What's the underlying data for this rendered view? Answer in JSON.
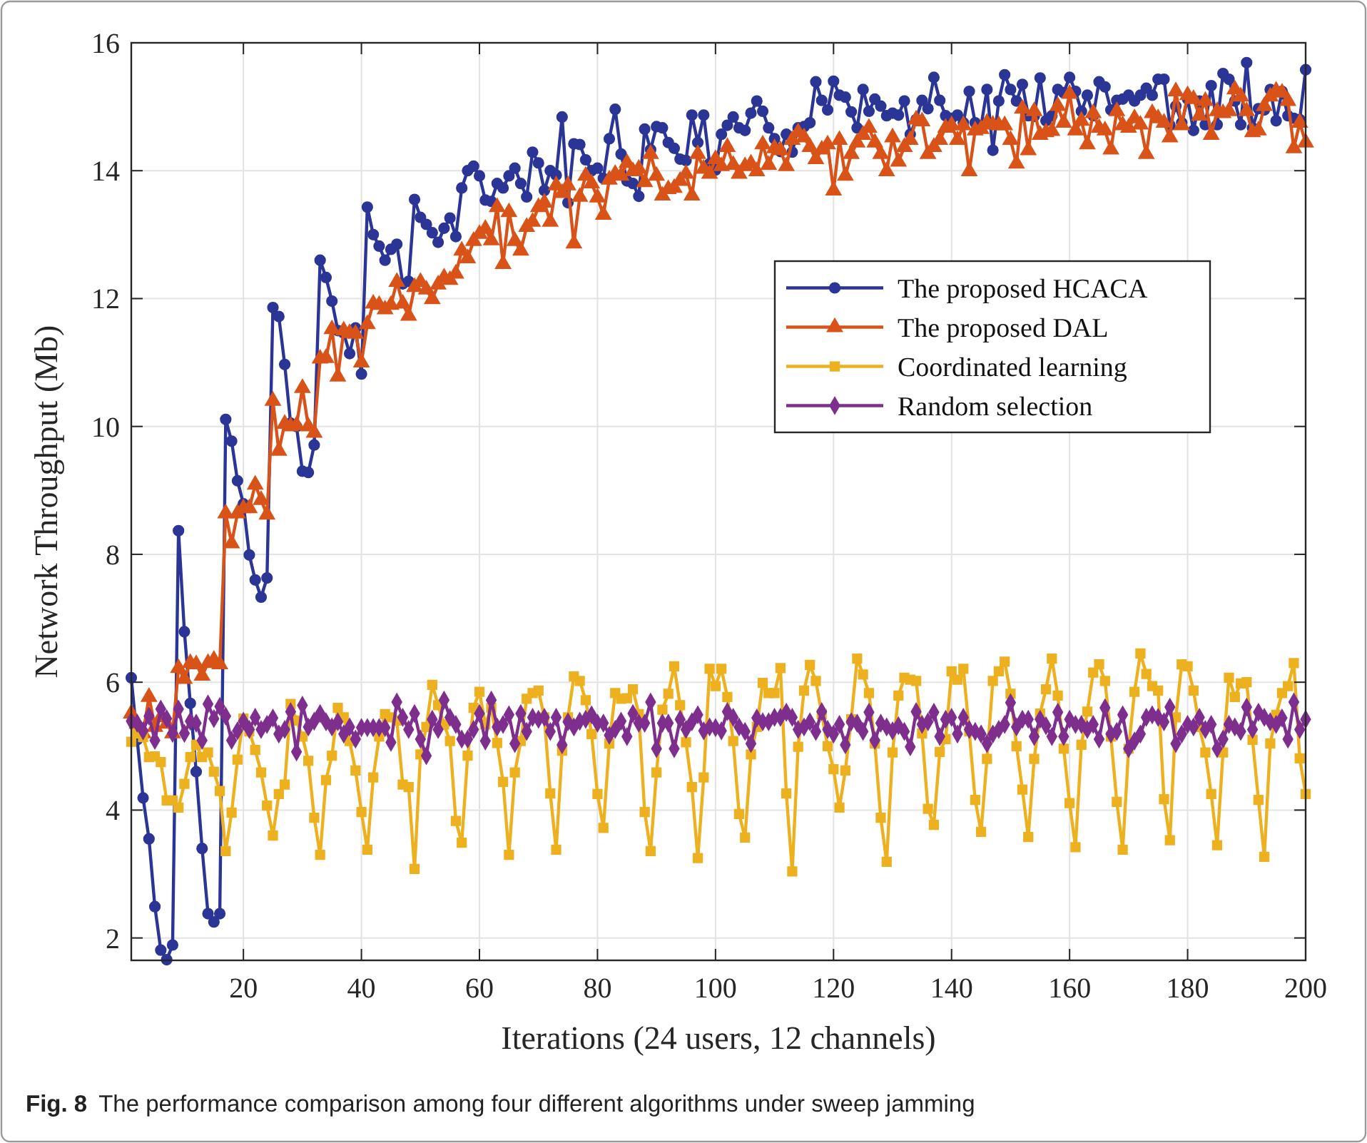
{
  "chart_data": {
    "type": "line",
    "xlabel": "Iterations (24 users, 12 channels)",
    "ylabel": "Network Throughput (Mb)",
    "annotations": [
      "Fig. 8 The performance comparison among four different algorithms under sweep jamming"
    ],
    "xlim": [
      1,
      200
    ],
    "ylim": [
      1.65,
      16
    ],
    "xticks": [
      20,
      40,
      60,
      80,
      100,
      120,
      140,
      160,
      180,
      200
    ],
    "yticks": [
      2,
      4,
      6,
      8,
      10,
      12,
      14,
      16
    ],
    "grid": true,
    "legend": "right",
    "line_style": "solid",
    "x": [
      1,
      2,
      3,
      4,
      5,
      6,
      7,
      8,
      9,
      10,
      11,
      12,
      13,
      14,
      15,
      16,
      17,
      18,
      19,
      20,
      21,
      22,
      23,
      24,
      25,
      26,
      27,
      28,
      29,
      30,
      31,
      32,
      33,
      34,
      35,
      36,
      37,
      38,
      39,
      40,
      41,
      42,
      43,
      44,
      45,
      46,
      47,
      48,
      49,
      50,
      51,
      52,
      53,
      54,
      55,
      56,
      57,
      58,
      59,
      60,
      61,
      62,
      63,
      64,
      65,
      66,
      67,
      68,
      69,
      70,
      71,
      72,
      73,
      74,
      75,
      76,
      77,
      78,
      79,
      80,
      81,
      82,
      83,
      84,
      85,
      86,
      87,
      88,
      89,
      90,
      91,
      92,
      93,
      94,
      95,
      96,
      97,
      98,
      99,
      100,
      101,
      102,
      103,
      104,
      105,
      106,
      107,
      108,
      109,
      110,
      111,
      112,
      113,
      114,
      115,
      116,
      117,
      118,
      119,
      120,
      121,
      122,
      123,
      124,
      125,
      126,
      127,
      128,
      129,
      130,
      131,
      132,
      133,
      134,
      135,
      136,
      137,
      138,
      139,
      140,
      141,
      142,
      143,
      144,
      145,
      146,
      147,
      148,
      149,
      150,
      151,
      152,
      153,
      154,
      155,
      156,
      157,
      158,
      159,
      160,
      161,
      162,
      163,
      164,
      165,
      166,
      167,
      168,
      169,
      170,
      171,
      172,
      173,
      174,
      175,
      176,
      177,
      178,
      179,
      180,
      181,
      182,
      183,
      184,
      185,
      186,
      187,
      188,
      189,
      190,
      191,
      192,
      193,
      194,
      195,
      196,
      197,
      198,
      199,
      200
    ],
    "series": [
      {
        "name": "The proposed HCACA",
        "color": "#2b3595",
        "marker": "circle",
        "values": [
          6.07,
          5.1,
          4.19,
          3.55,
          2.49,
          1.81,
          1.66,
          1.89,
          8.37,
          6.79,
          5.67,
          4.6,
          3.4,
          2.38,
          2.25,
          2.38,
          10.11,
          9.77,
          9.15,
          8.79,
          7.99,
          7.6,
          7.33,
          7.63,
          11.86,
          11.72,
          10.97,
          10.05,
          10.0,
          9.3,
          9.28,
          9.71,
          12.6,
          12.33,
          11.96,
          11.5,
          11.46,
          11.14,
          11.54,
          10.82,
          13.43,
          13.0,
          12.82,
          12.6,
          12.77,
          12.85,
          12.23,
          12.27,
          13.55,
          13.27,
          13.16,
          13.03,
          12.88,
          13.1,
          13.26,
          12.97,
          13.73,
          14.0,
          14.07,
          13.92,
          13.54,
          13.52,
          13.8,
          13.73,
          13.92,
          14.04,
          13.8,
          13.59,
          14.29,
          14.12,
          13.69,
          14.0,
          13.93,
          14.84,
          13.5,
          14.42,
          14.41,
          14.17,
          14.0,
          14.04,
          13.88,
          14.5,
          14.96,
          14.26,
          13.84,
          13.8,
          13.6,
          14.65,
          14.33,
          14.69,
          14.67,
          14.44,
          14.35,
          14.18,
          14.16,
          14.87,
          14.44,
          14.87,
          14.11,
          14.01,
          14.57,
          14.71,
          14.84,
          14.67,
          14.63,
          14.9,
          15.09,
          14.93,
          14.67,
          14.5,
          14.3,
          14.57,
          14.29,
          14.67,
          14.69,
          14.75,
          15.39,
          15.1,
          14.95,
          15.4,
          15.18,
          15.15,
          14.92,
          14.67,
          15.27,
          14.93,
          15.12,
          15.01,
          14.86,
          14.9,
          14.87,
          15.09,
          14.57,
          14.8,
          15.1,
          14.97,
          15.46,
          15.1,
          14.86,
          14.82,
          14.87,
          14.75,
          15.24,
          14.75,
          14.7,
          15.27,
          14.32,
          15.09,
          15.5,
          15.27,
          15.09,
          15.35,
          14.86,
          14.85,
          15.45,
          14.78,
          14.86,
          15.27,
          15.22,
          15.46,
          15.24,
          14.93,
          15.18,
          14.86,
          15.39,
          15.31,
          14.95,
          15.1,
          15.12,
          15.18,
          15.09,
          15.18,
          15.29,
          15.18,
          15.43,
          15.43,
          14.71,
          15.01,
          14.75,
          15.12,
          14.63,
          15.09,
          14.72,
          15.33,
          14.72,
          15.52,
          15.43,
          15.09,
          14.72,
          15.69,
          14.67,
          14.97,
          14.95,
          15.27,
          14.78,
          15.24,
          14.86,
          14.82,
          14.8,
          15.58
        ]
      },
      {
        "name": "The proposed DAL",
        "color": "#d95319",
        "marker": "triangle",
        "values": [
          5.51,
          5.35,
          5.2,
          5.77,
          5.3,
          5.45,
          5.35,
          5.2,
          6.22,
          6.05,
          6.3,
          6.28,
          6.1,
          6.3,
          6.35,
          6.28,
          8.64,
          8.17,
          8.64,
          8.72,
          8.72,
          9.09,
          8.85,
          8.62,
          10.4,
          9.62,
          10.04,
          10.0,
          10.02,
          10.6,
          10.0,
          9.9,
          11.06,
          11.07,
          11.52,
          10.78,
          11.5,
          11.46,
          11.45,
          11.0,
          11.6,
          11.92,
          11.9,
          11.83,
          11.9,
          12.26,
          11.92,
          11.73,
          12.18,
          12.26,
          12.14,
          11.99,
          12.22,
          12.33,
          12.29,
          12.39,
          12.75,
          12.63,
          12.9,
          13.01,
          13.09,
          12.91,
          13.43,
          12.54,
          13.35,
          12.9,
          12.75,
          13.12,
          13.2,
          13.43,
          13.5,
          13.2,
          13.77,
          13.65,
          13.77,
          12.86,
          13.59,
          13.92,
          13.8,
          13.58,
          13.31,
          13.86,
          13.95,
          13.92,
          14.12,
          13.99,
          14.03,
          13.82,
          14.26,
          13.92,
          13.61,
          13.71,
          13.73,
          13.84,
          13.95,
          13.61,
          14.26,
          14.03,
          13.95,
          14.18,
          14.07,
          14.37,
          14.09,
          13.95,
          14.07,
          14.11,
          13.99,
          14.41,
          14.09,
          14.35,
          14.32,
          14.07,
          14.48,
          14.6,
          14.52,
          14.37,
          14.18,
          14.33,
          14.41,
          13.69,
          14.48,
          13.92,
          14.26,
          14.44,
          14.56,
          14.67,
          14.44,
          14.26,
          13.99,
          14.52,
          14.14,
          14.37,
          14.48,
          14.8,
          14.77,
          14.26,
          14.37,
          14.48,
          14.67,
          14.71,
          14.48,
          14.71,
          13.99,
          14.63,
          14.65,
          14.75,
          14.72,
          14.71,
          14.71,
          14.48,
          14.11,
          14.97,
          14.32,
          14.93,
          14.56,
          14.6,
          14.62,
          15.01,
          14.75,
          15.2,
          14.63,
          14.78,
          14.41,
          14.9,
          14.67,
          14.63,
          14.33,
          14.93,
          14.71,
          14.67,
          14.82,
          14.72,
          14.26,
          14.9,
          14.82,
          14.75,
          14.52,
          15.24,
          14.71,
          15.18,
          15.12,
          14.86,
          15.09,
          14.56,
          14.93,
          14.9,
          14.93,
          15.27,
          15.16,
          14.93,
          14.6,
          14.63,
          15.01,
          15.16,
          15.25,
          15.22,
          15.09,
          14.35,
          14.75,
          14.44
        ]
      },
      {
        "name": "Coordinated learning",
        "color": "#edb120",
        "marker": "square",
        "values": [
          5.07,
          5.2,
          5.14,
          4.83,
          4.84,
          4.75,
          4.15,
          4.15,
          4.04,
          4.41,
          4.83,
          5.02,
          4.83,
          4.9,
          4.6,
          4.3,
          3.36,
          3.96,
          4.79,
          5.43,
          5.23,
          4.94,
          4.59,
          4.07,
          3.6,
          4.25,
          4.4,
          5.66,
          5.4,
          5.15,
          4.77,
          3.88,
          3.3,
          4.47,
          4.85,
          5.6,
          5.45,
          5.08,
          4.62,
          3.97,
          3.38,
          4.51,
          5.15,
          5.5,
          5.45,
          5.4,
          4.4,
          4.36,
          3.08,
          4.87,
          5.3,
          5.96,
          5.64,
          5.34,
          5.08,
          3.83,
          3.49,
          4.85,
          5.6,
          5.85,
          5.34,
          5.6,
          5.05,
          4.44,
          3.3,
          4.59,
          5.08,
          5.74,
          5.83,
          5.87,
          5.45,
          4.26,
          3.38,
          4.93,
          5.45,
          6.09,
          6.02,
          5.72,
          5.19,
          4.25,
          3.72,
          5.04,
          5.83,
          5.74,
          5.75,
          5.89,
          5.5,
          3.97,
          3.36,
          4.59,
          5.57,
          5.82,
          6.25,
          5.64,
          5.06,
          4.36,
          3.25,
          4.51,
          6.21,
          5.94,
          6.21,
          5.77,
          5.08,
          3.94,
          3.57,
          4.87,
          5.3,
          5.99,
          5.83,
          5.83,
          6.22,
          4.26,
          3.04,
          4.99,
          5.87,
          6.27,
          6.02,
          5.5,
          5.0,
          4.64,
          4.04,
          4.62,
          5.42,
          6.37,
          6.12,
          5.83,
          5.04,
          3.88,
          3.19,
          4.9,
          5.79,
          6.07,
          6.04,
          6.02,
          5.2,
          4.02,
          3.77,
          4.91,
          5.11,
          6.17,
          6.04,
          6.21,
          5.23,
          4.16,
          3.66,
          4.8,
          6.02,
          6.17,
          6.32,
          5.82,
          5.0,
          4.32,
          3.58,
          4.8,
          5.51,
          5.89,
          6.37,
          5.79,
          4.96,
          4.11,
          3.42,
          5.02,
          5.54,
          6.15,
          6.28,
          6.02,
          5.15,
          4.13,
          3.38,
          4.96,
          5.85,
          6.45,
          6.13,
          5.94,
          5.87,
          4.17,
          3.53,
          5.45,
          6.28,
          6.25,
          5.87,
          5.3,
          4.9,
          4.25,
          3.45,
          4.9,
          6.07,
          5.77,
          5.98,
          6.0,
          5.1,
          4.16,
          3.27,
          5.04,
          5.49,
          5.83,
          5.94,
          6.3,
          4.81,
          4.25
        ]
      },
      {
        "name": "Random selection",
        "color": "#7e2f8e",
        "marker": "diamond",
        "values": [
          5.39,
          5.36,
          5.24,
          5.47,
          5.09,
          5.58,
          5.43,
          5.2,
          5.58,
          5.2,
          5.39,
          5.36,
          5.09,
          5.66,
          5.43,
          5.62,
          5.47,
          5.09,
          5.24,
          5.39,
          5.26,
          5.45,
          5.26,
          5.34,
          5.44,
          5.19,
          5.26,
          5.54,
          4.91,
          5.64,
          5.3,
          5.39,
          5.51,
          5.38,
          5.3,
          5.38,
          5.19,
          5.3,
          5.11,
          5.29,
          5.29,
          5.29,
          5.29,
          5.29,
          5.06,
          5.69,
          5.45,
          5.26,
          5.51,
          5.11,
          4.85,
          5.42,
          5.26,
          5.72,
          5.45,
          5.34,
          5.11,
          5.11,
          5.26,
          5.51,
          5.08,
          5.72,
          5.3,
          5.34,
          5.49,
          5.04,
          5.51,
          5.23,
          5.45,
          5.42,
          5.45,
          5.23,
          5.45,
          5.02,
          5.38,
          5.3,
          5.39,
          5.42,
          5.49,
          5.36,
          5.36,
          5.17,
          5.26,
          5.39,
          5.15,
          5.51,
          5.36,
          5.36,
          5.69,
          4.96,
          5.36,
          5.36,
          4.96,
          5.42,
          5.26,
          5.38,
          5.49,
          5.24,
          5.3,
          5.29,
          5.24,
          5.54,
          5.45,
          5.3,
          5.23,
          5.04,
          5.44,
          5.38,
          5.38,
          5.45,
          5.45,
          5.53,
          5.45,
          5.26,
          5.3,
          5.38,
          5.23,
          5.54,
          5.26,
          5.19,
          5.34,
          5.02,
          5.38,
          5.36,
          5.23,
          5.53,
          5.09,
          5.36,
          5.3,
          5.24,
          5.32,
          5.23,
          4.99,
          5.54,
          5.34,
          5.38,
          5.53,
          5.15,
          5.42,
          5.45,
          5.19,
          5.45,
          5.26,
          5.23,
          5.19,
          5.04,
          5.19,
          5.26,
          5.34,
          5.68,
          5.3,
          5.42,
          5.42,
          5.15,
          5.42,
          5.32,
          5.15,
          5.53,
          5.15,
          5.42,
          5.34,
          5.34,
          5.26,
          5.34,
          5.11,
          5.6,
          5.19,
          5.23,
          5.49,
          4.96,
          5.08,
          5.19,
          5.45,
          5.49,
          5.45,
          5.38,
          5.61,
          5.04,
          5.19,
          5.34,
          5.3,
          5.45,
          5.26,
          5.34,
          4.96,
          5.11,
          5.34,
          5.3,
          5.23,
          5.61,
          5.26,
          5.53,
          5.45,
          5.38,
          5.34,
          5.44,
          5.11,
          5.69,
          5.26,
          5.42
        ]
      }
    ]
  }
}
